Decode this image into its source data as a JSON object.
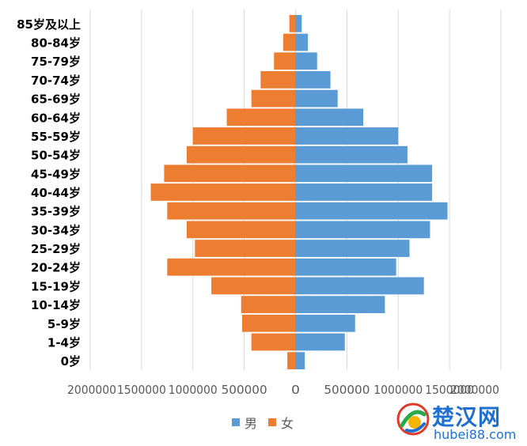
{
  "chart_data": {
    "type": "bar",
    "orientation": "horizontal",
    "categories": [
      "0岁",
      "1-4岁",
      "5-9岁",
      "10-14岁",
      "15-19岁",
      "20-24岁",
      "25-29岁",
      "30-34岁",
      "35-39岁",
      "40-44岁",
      "45-49岁",
      "50-54岁",
      "55-59岁",
      "60-64岁",
      "65-69岁",
      "70-74岁",
      "75-79岁",
      "80-84岁",
      "85岁及以上"
    ],
    "series": [
      {
        "name": "男",
        "color": "#5B9BD5",
        "values": [
          90000,
          480000,
          580000,
          870000,
          1250000,
          980000,
          1110000,
          1310000,
          1480000,
          1330000,
          1330000,
          1090000,
          1000000,
          660000,
          410000,
          340000,
          210000,
          120000,
          60000
        ]
      },
      {
        "name": "女",
        "color": "#ED7D31",
        "values": [
          -80000,
          -430000,
          -520000,
          -530000,
          -820000,
          -1250000,
          -980000,
          -1060000,
          -1250000,
          -1410000,
          -1280000,
          -1060000,
          -1000000,
          -670000,
          -430000,
          -340000,
          -210000,
          -120000,
          -60000
        ]
      }
    ],
    "xlim": [
      -2000000,
      2000000
    ],
    "xticks": [
      -2000000,
      -1500000,
      -1000000,
      -500000,
      0,
      500000,
      1000000,
      1500000,
      2000000
    ],
    "xtick_labels": [
      "2000000",
      "1500000",
      "1000000",
      "500000",
      "0",
      "500000",
      "1000000",
      "1500000",
      "2000000"
    ],
    "grid": true,
    "legend_position": "bottom-center",
    "title": "",
    "xlabel": "",
    "ylabel": ""
  },
  "legend": {
    "items": [
      {
        "label": "男",
        "color": "#5B9BD5"
      },
      {
        "label": "女",
        "color": "#ED7D31"
      }
    ]
  },
  "watermark": {
    "title": "楚汉网",
    "domain": "hubei88.com"
  }
}
